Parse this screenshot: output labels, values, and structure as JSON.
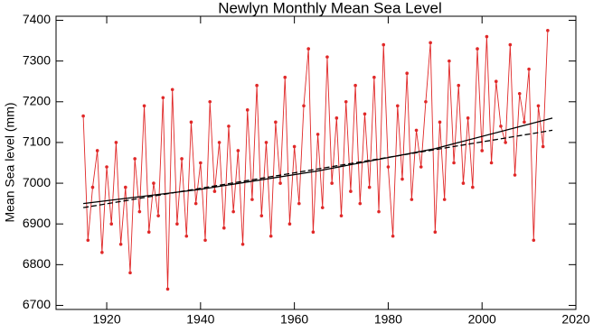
{
  "chart_data": {
    "type": "line",
    "title": "Newlyn Monthly Mean Sea Level",
    "y_label": "Mean Sea level (mm)",
    "xlim": [
      1909.2,
      2020
    ],
    "xticks": [
      1920,
      1940,
      1960,
      1980,
      2000,
      2020
    ],
    "ylim": [
      6690,
      7410
    ],
    "yticks": [
      6700,
      6800,
      6900,
      7000,
      7100,
      7200,
      7300,
      7400
    ],
    "series": [
      {
        "color": "#e02828",
        "markers": true,
        "dash": false,
        "x": [
          1915,
          1916,
          1917,
          1918,
          1919,
          1920,
          1921,
          1922,
          1923,
          1924,
          1925,
          1926,
          1927,
          1928,
          1929,
          1930,
          1931,
          1932,
          1933,
          1934,
          1935,
          1936,
          1937,
          1938,
          1939,
          1940,
          1941,
          1942,
          1943,
          1944,
          1945,
          1946,
          1947,
          1948,
          1949,
          1950,
          1951,
          1952,
          1953,
          1954,
          1955,
          1956,
          1957,
          1958,
          1959,
          1960,
          1961,
          1962,
          1963,
          1964,
          1965,
          1966,
          1967,
          1968,
          1969,
          1970,
          1971,
          1972,
          1973,
          1974,
          1975,
          1976,
          1977,
          1978,
          1979,
          1980,
          1981,
          1982,
          1983,
          1984,
          1985,
          1986,
          1987,
          1988,
          1989,
          1990,
          1991,
          1992,
          1993,
          1994,
          1995,
          1996,
          1997,
          1998,
          1999,
          2000,
          2001,
          2002,
          2003,
          2004,
          2005,
          2006,
          2007,
          2008,
          2009,
          2010,
          2011,
          2012,
          2013,
          2014
        ],
        "values": [
          7165,
          6860,
          6990,
          7080,
          6830,
          7040,
          6900,
          7100,
          6850,
          6990,
          6780,
          7060,
          6930,
          7190,
          6880,
          7000,
          6920,
          7210,
          6740,
          7230,
          6900,
          7060,
          6870,
          7150,
          6950,
          7050,
          6860,
          7200,
          6980,
          7100,
          6890,
          7140,
          6930,
          7080,
          6850,
          7180,
          6960,
          7240,
          6920,
          7100,
          6870,
          7150,
          7000,
          7260,
          6900,
          7090,
          6950,
          7190,
          7330,
          6880,
          7120,
          6940,
          7310,
          7000,
          7160,
          6920,
          7200,
          6980,
          7240,
          6950,
          7170,
          6990,
          7260,
          6930,
          7340,
          7040,
          6870,
          7190,
          7010,
          7270,
          6960,
          7130,
          7040,
          7200,
          7345,
          6880,
          7150,
          6960,
          7300,
          7050,
          7240,
          7000,
          7160,
          6990,
          7330,
          7080,
          7360,
          7050,
          7250,
          7140,
          7100,
          7340,
          7020,
          7220,
          7150,
          7280,
          6860,
          7190,
          7090,
          7375
        ]
      },
      {
        "color": "#000000",
        "markers": false,
        "dash": false,
        "x": [
          1915,
          1940,
          1965,
          1990,
          2015
        ],
        "values": [
          6950,
          6985,
          7030,
          7085,
          7160
        ]
      },
      {
        "color": "#000000",
        "markers": false,
        "dash": true,
        "x": [
          1915,
          2015
        ],
        "values": [
          6940,
          7130
        ]
      }
    ]
  }
}
